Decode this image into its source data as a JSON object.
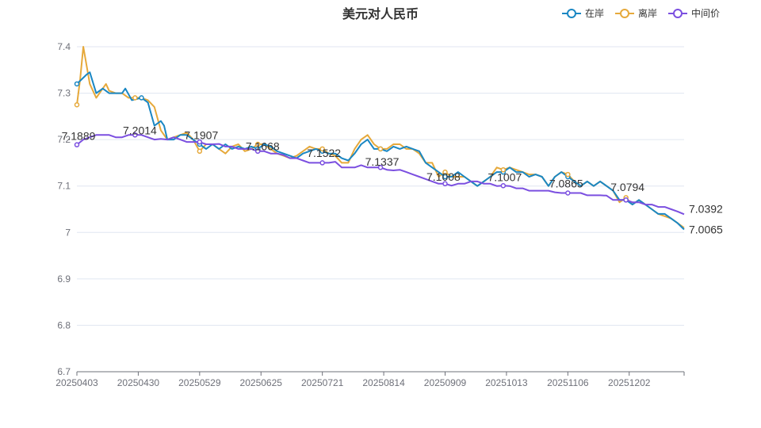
{
  "chart_data": {
    "type": "line",
    "title": "美元对人民币",
    "ylim": [
      6.7,
      7.4
    ],
    "y_ticks": [
      "6.7",
      "6.8",
      "6.9",
      "7",
      "7.1",
      "7.2",
      "7.3",
      "7.4"
    ],
    "x_ticks": [
      "20250403",
      "20250430",
      "20250529",
      "20250625",
      "20250721",
      "20250814",
      "20250909",
      "20251013",
      "20251106",
      "20251202"
    ],
    "grid": true,
    "legend_position": "top-right",
    "series": [
      {
        "name": "在岸",
        "color": "#1a87c3",
        "values": [
          [
            0,
            7.32
          ],
          [
            3,
            7.34
          ],
          [
            4,
            7.345
          ],
          [
            6,
            7.3
          ],
          [
            8,
            7.31
          ],
          [
            10,
            7.3
          ],
          [
            12,
            7.3
          ],
          [
            14,
            7.3
          ],
          [
            15,
            7.31
          ],
          [
            17,
            7.285
          ],
          [
            20,
            7.29
          ],
          [
            22,
            7.28
          ],
          [
            24,
            7.23
          ],
          [
            26,
            7.24
          ],
          [
            27,
            7.23
          ],
          [
            28,
            7.2
          ],
          [
            30,
            7.2
          ],
          [
            32,
            7.21
          ],
          [
            34,
            7.21
          ],
          [
            36,
            7.2
          ],
          [
            38,
            7.19
          ],
          [
            40,
            7.18
          ],
          [
            42,
            7.19
          ],
          [
            44,
            7.18
          ],
          [
            46,
            7.19
          ],
          [
            48,
            7.18
          ],
          [
            50,
            7.185
          ],
          [
            52,
            7.18
          ],
          [
            54,
            7.185
          ],
          [
            56,
            7.18
          ],
          [
            58,
            7.19
          ],
          [
            60,
            7.185
          ],
          [
            62,
            7.175
          ],
          [
            64,
            7.17
          ],
          [
            66,
            7.165
          ],
          [
            68,
            7.16
          ],
          [
            70,
            7.17
          ],
          [
            72,
            7.175
          ],
          [
            74,
            7.18
          ],
          [
            76,
            7.175
          ],
          [
            78,
            7.17
          ],
          [
            80,
            7.17
          ],
          [
            82,
            7.16
          ],
          [
            84,
            7.155
          ],
          [
            86,
            7.17
          ],
          [
            88,
            7.19
          ],
          [
            90,
            7.2
          ],
          [
            92,
            7.18
          ],
          [
            94,
            7.18
          ],
          [
            96,
            7.175
          ],
          [
            98,
            7.185
          ],
          [
            100,
            7.18
          ],
          [
            102,
            7.185
          ],
          [
            104,
            7.18
          ],
          [
            106,
            7.175
          ],
          [
            108,
            7.15
          ],
          [
            110,
            7.14
          ],
          [
            112,
            7.13
          ],
          [
            114,
            7.12
          ],
          [
            116,
            7.12
          ],
          [
            118,
            7.13
          ],
          [
            120,
            7.12
          ],
          [
            122,
            7.11
          ],
          [
            124,
            7.1
          ],
          [
            126,
            7.11
          ],
          [
            128,
            7.12
          ],
          [
            130,
            7.13
          ],
          [
            132,
            7.13
          ],
          [
            134,
            7.14
          ],
          [
            136,
            7.13
          ],
          [
            138,
            7.13
          ],
          [
            140,
            7.12
          ],
          [
            142,
            7.125
          ],
          [
            144,
            7.12
          ],
          [
            146,
            7.1
          ],
          [
            148,
            7.12
          ],
          [
            150,
            7.13
          ],
          [
            152,
            7.12
          ],
          [
            154,
            7.11
          ],
          [
            156,
            7.1
          ],
          [
            158,
            7.11
          ],
          [
            160,
            7.1
          ],
          [
            162,
            7.11
          ],
          [
            164,
            7.1
          ],
          [
            166,
            7.09
          ],
          [
            168,
            7.07
          ],
          [
            170,
            7.07
          ],
          [
            172,
            7.06
          ],
          [
            174,
            7.07
          ],
          [
            176,
            7.06
          ],
          [
            178,
            7.05
          ],
          [
            180,
            7.04
          ],
          [
            182,
            7.04
          ],
          [
            184,
            7.03
          ],
          [
            186,
            7.02
          ],
          [
            188,
            7.0065
          ]
        ]
      },
      {
        "name": "离岸",
        "color": "#e6a93b",
        "values": [
          [
            0,
            7.275
          ],
          [
            1,
            7.33
          ],
          [
            2,
            7.4
          ],
          [
            4,
            7.32
          ],
          [
            6,
            7.29
          ],
          [
            8,
            7.31
          ],
          [
            9,
            7.32
          ],
          [
            10,
            7.305
          ],
          [
            12,
            7.3
          ],
          [
            14,
            7.3
          ],
          [
            16,
            7.29
          ],
          [
            18,
            7.29
          ],
          [
            20,
            7.29
          ],
          [
            22,
            7.285
          ],
          [
            24,
            7.27
          ],
          [
            26,
            7.22
          ],
          [
            27,
            7.21
          ],
          [
            28,
            7.2
          ],
          [
            30,
            7.205
          ],
          [
            32,
            7.21
          ],
          [
            34,
            7.215
          ],
          [
            36,
            7.2
          ],
          [
            38,
            7.175
          ],
          [
            40,
            7.19
          ],
          [
            42,
            7.19
          ],
          [
            44,
            7.18
          ],
          [
            46,
            7.17
          ],
          [
            48,
            7.185
          ],
          [
            50,
            7.19
          ],
          [
            52,
            7.175
          ],
          [
            54,
            7.18
          ],
          [
            56,
            7.19
          ],
          [
            58,
            7.19
          ],
          [
            60,
            7.18
          ],
          [
            62,
            7.17
          ],
          [
            64,
            7.165
          ],
          [
            66,
            7.16
          ],
          [
            68,
            7.165
          ],
          [
            70,
            7.175
          ],
          [
            72,
            7.185
          ],
          [
            74,
            7.18
          ],
          [
            76,
            7.18
          ],
          [
            78,
            7.17
          ],
          [
            80,
            7.165
          ],
          [
            82,
            7.15
          ],
          [
            84,
            7.15
          ],
          [
            86,
            7.18
          ],
          [
            88,
            7.2
          ],
          [
            90,
            7.21
          ],
          [
            92,
            7.19
          ],
          [
            94,
            7.18
          ],
          [
            96,
            7.18
          ],
          [
            98,
            7.19
          ],
          [
            100,
            7.19
          ],
          [
            102,
            7.18
          ],
          [
            104,
            7.18
          ],
          [
            106,
            7.17
          ],
          [
            108,
            7.15
          ],
          [
            110,
            7.15
          ],
          [
            112,
            7.12
          ],
          [
            114,
            7.13
          ],
          [
            116,
            7.12
          ],
          [
            118,
            7.12
          ],
          [
            120,
            7.12
          ],
          [
            122,
            7.11
          ],
          [
            124,
            7.1
          ],
          [
            126,
            7.11
          ],
          [
            128,
            7.12
          ],
          [
            130,
            7.14
          ],
          [
            132,
            7.135
          ],
          [
            134,
            7.14
          ],
          [
            136,
            7.135
          ],
          [
            138,
            7.13
          ],
          [
            140,
            7.125
          ],
          [
            142,
            7.125
          ],
          [
            144,
            7.12
          ],
          [
            146,
            7.1
          ],
          [
            148,
            7.12
          ],
          [
            150,
            7.13
          ],
          [
            152,
            7.125
          ],
          [
            154,
            7.11
          ],
          [
            156,
            7.1
          ],
          [
            158,
            7.11
          ],
          [
            160,
            7.1
          ],
          [
            162,
            7.11
          ],
          [
            164,
            7.1
          ],
          [
            166,
            7.09
          ],
          [
            168,
            7.065
          ],
          [
            170,
            7.075
          ],
          [
            172,
            7.06
          ],
          [
            174,
            7.07
          ],
          [
            176,
            7.06
          ],
          [
            178,
            7.05
          ],
          [
            180,
            7.04
          ],
          [
            182,
            7.035
          ],
          [
            184,
            7.03
          ],
          [
            186,
            7.02
          ],
          [
            188,
            7.01
          ]
        ]
      },
      {
        "name": "中间价",
        "color": "#7b4fe0",
        "values": [
          [
            0,
            7.1889
          ],
          [
            2,
            7.2
          ],
          [
            4,
            7.205
          ],
          [
            6,
            7.21
          ],
          [
            8,
            7.21
          ],
          [
            10,
            7.21
          ],
          [
            12,
            7.205
          ],
          [
            14,
            7.205
          ],
          [
            16,
            7.21
          ],
          [
            18,
            7.21
          ],
          [
            20,
            7.21
          ],
          [
            22,
            7.205
          ],
          [
            24,
            7.2
          ],
          [
            26,
            7.2014
          ],
          [
            28,
            7.2
          ],
          [
            30,
            7.205
          ],
          [
            32,
            7.2
          ],
          [
            34,
            7.195
          ],
          [
            36,
            7.195
          ],
          [
            38,
            7.195
          ],
          [
            40,
            7.19
          ],
          [
            42,
            7.19
          ],
          [
            44,
            7.1907
          ],
          [
            46,
            7.185
          ],
          [
            48,
            7.185
          ],
          [
            50,
            7.18
          ],
          [
            52,
            7.18
          ],
          [
            54,
            7.18
          ],
          [
            56,
            7.175
          ],
          [
            58,
            7.175
          ],
          [
            60,
            7.17
          ],
          [
            62,
            7.17
          ],
          [
            64,
            7.1668
          ],
          [
            66,
            7.16
          ],
          [
            68,
            7.16
          ],
          [
            70,
            7.155
          ],
          [
            72,
            7.15
          ],
          [
            74,
            7.15
          ],
          [
            76,
            7.15
          ],
          [
            78,
            7.15
          ],
          [
            80,
            7.1522
          ],
          [
            82,
            7.14
          ],
          [
            84,
            7.14
          ],
          [
            86,
            7.14
          ],
          [
            88,
            7.145
          ],
          [
            90,
            7.14
          ],
          [
            92,
            7.14
          ],
          [
            94,
            7.14
          ],
          [
            96,
            7.135
          ],
          [
            98,
            7.1337
          ],
          [
            100,
            7.135
          ],
          [
            102,
            7.13
          ],
          [
            104,
            7.125
          ],
          [
            106,
            7.12
          ],
          [
            108,
            7.115
          ],
          [
            110,
            7.11
          ],
          [
            112,
            7.105
          ],
          [
            114,
            7.105
          ],
          [
            116,
            7.1008
          ],
          [
            118,
            7.105
          ],
          [
            120,
            7.105
          ],
          [
            122,
            7.11
          ],
          [
            124,
            7.11
          ],
          [
            126,
            7.105
          ],
          [
            128,
            7.105
          ],
          [
            130,
            7.1
          ],
          [
            132,
            7.1007
          ],
          [
            134,
            7.1
          ],
          [
            136,
            7.095
          ],
          [
            138,
            7.095
          ],
          [
            140,
            7.09
          ],
          [
            142,
            7.09
          ],
          [
            144,
            7.09
          ],
          [
            146,
            7.09
          ],
          [
            148,
            7.0865
          ],
          [
            150,
            7.085
          ],
          [
            152,
            7.085
          ],
          [
            154,
            7.085
          ],
          [
            156,
            7.085
          ],
          [
            158,
            7.08
          ],
          [
            160,
            7.08
          ],
          [
            162,
            7.08
          ],
          [
            164,
            7.0794
          ],
          [
            166,
            7.07
          ],
          [
            168,
            7.07
          ],
          [
            170,
            7.07
          ],
          [
            172,
            7.065
          ],
          [
            174,
            7.065
          ],
          [
            176,
            7.06
          ],
          [
            178,
            7.06
          ],
          [
            180,
            7.055
          ],
          [
            182,
            7.055
          ],
          [
            184,
            7.05
          ],
          [
            186,
            7.045
          ],
          [
            188,
            7.0392
          ]
        ]
      }
    ],
    "annotations": [
      {
        "series": 2,
        "x": 0,
        "y": 7.1889,
        "label": "7.1889"
      },
      {
        "series": 2,
        "x": 19,
        "y": 7.2014,
        "label": "7.2014"
      },
      {
        "series": 2,
        "x": 38,
        "y": 7.1907,
        "label": "7.1907"
      },
      {
        "series": 2,
        "x": 57,
        "y": 7.1668,
        "label": "7.1668"
      },
      {
        "series": 2,
        "x": 76,
        "y": 7.1522,
        "label": "7.1522"
      },
      {
        "series": 2,
        "x": 94,
        "y": 7.1337,
        "label": "7.1337"
      },
      {
        "series": 2,
        "x": 113,
        "y": 7.1008,
        "label": "7.1008"
      },
      {
        "series": 2,
        "x": 132,
        "y": 7.1007,
        "label": "7.1007"
      },
      {
        "series": 2,
        "x": 151,
        "y": 7.0865,
        "label": "7.0865"
      },
      {
        "series": 2,
        "x": 170,
        "y": 7.0794,
        "label": "7.0794"
      },
      {
        "series": 2,
        "x": 188,
        "y": 7.0392,
        "label": "7.0392"
      },
      {
        "series": 0,
        "x": 188,
        "y": 7.0065,
        "label": "7.0065"
      }
    ]
  }
}
